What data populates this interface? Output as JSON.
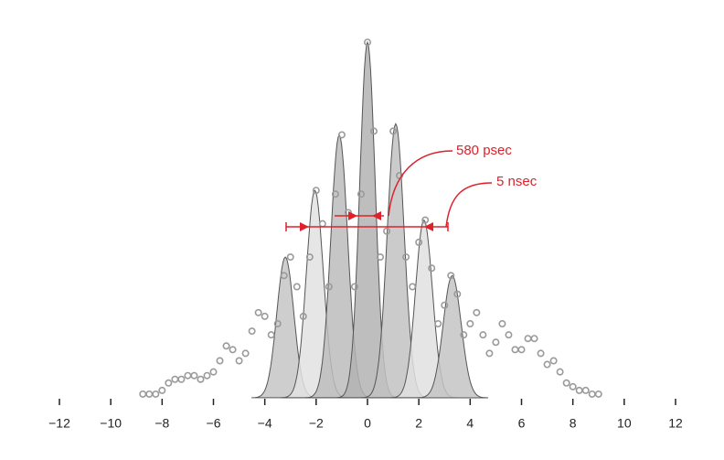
{
  "chart_data": {
    "type": "scatter",
    "annotations": [
      "580 psec",
      "5 nsec"
    ],
    "x": [
      -8.75,
      -8.5,
      -8.25,
      -8,
      -7.75,
      -7.5,
      -7.25,
      -7,
      -6.75,
      -6.5,
      -6.25,
      -6,
      -5.75,
      -5.5,
      -5.25,
      -5,
      -4.75,
      -4.5,
      -4.25,
      -4,
      -3.75,
      -3.5,
      -3.25,
      -3,
      -2.75,
      -2.5,
      -2.25,
      -2,
      -1.75,
      -1.5,
      -1.25,
      -1,
      -0.75,
      -0.5,
      -0.25,
      0,
      0.25,
      0.5,
      0.75,
      1,
      1.25,
      1.5,
      1.75,
      2,
      2.25,
      2.5,
      2.75,
      3,
      3.25,
      3.5,
      3.75,
      4,
      4.25,
      4.5,
      4.75,
      5,
      5.25,
      5.5,
      5.75,
      6,
      6.25,
      6.5,
      6.75,
      7,
      7.25,
      7.5,
      7.75,
      8,
      8.25,
      8.5,
      8.75,
      9
    ],
    "values": [
      0.01,
      0.01,
      0.01,
      0.02,
      0.04,
      0.05,
      0.05,
      0.06,
      0.06,
      0.05,
      0.06,
      0.07,
      0.1,
      0.14,
      0.13,
      0.1,
      0.12,
      0.18,
      0.23,
      0.22,
      0.17,
      0.2,
      0.33,
      0.38,
      0.3,
      0.22,
      0.38,
      0.56,
      0.47,
      0.3,
      0.55,
      0.71,
      0.5,
      0.3,
      0.55,
      0.96,
      0.72,
      0.38,
      0.45,
      0.72,
      0.6,
      0.38,
      0.3,
      0.42,
      0.48,
      0.35,
      0.2,
      0.25,
      0.33,
      0.28,
      0.17,
      0.2,
      0.23,
      0.17,
      0.12,
      0.15,
      0.2,
      0.17,
      0.13,
      0.13,
      0.16,
      0.16,
      0.12,
      0.09,
      0.1,
      0.07,
      0.04,
      0.03,
      0.02,
      0.02,
      0.01,
      0.01
    ],
    "color": "#9a9a9a",
    "peaks": [
      {
        "center": -3.2,
        "height": 0.38,
        "width": 0.33,
        "color": "#c6c6c6"
      },
      {
        "center": -2.05,
        "height": 0.56,
        "width": 0.33,
        "color": "#e2e2e2"
      },
      {
        "center": -1.1,
        "height": 0.71,
        "width": 0.33,
        "color": "#bcbcbc"
      },
      {
        "center": 0,
        "height": 0.96,
        "width": 0.3,
        "color": "#b3b3b3"
      },
      {
        "center": 1.1,
        "height": 0.74,
        "width": 0.33,
        "color": "#c2c2c2"
      },
      {
        "center": 2.2,
        "height": 0.48,
        "width": 0.33,
        "color": "#e0e0e0"
      },
      {
        "center": 3.3,
        "height": 0.33,
        "width": 0.35,
        "color": "#c4c4c4"
      }
    ],
    "xlim": [
      -12,
      12
    ],
    "ylim": [
      0,
      1
    ],
    "xticks": [
      {
        "value": -12,
        "label": "−12"
      },
      {
        "value": -10,
        "label": "−10"
      },
      {
        "value": -8,
        "label": "−8"
      },
      {
        "value": -6,
        "label": "−6"
      },
      {
        "value": -4,
        "label": "−4"
      },
      {
        "value": -2,
        "label": "−2"
      },
      0,
      2,
      4,
      6,
      8,
      10,
      12
    ]
  }
}
